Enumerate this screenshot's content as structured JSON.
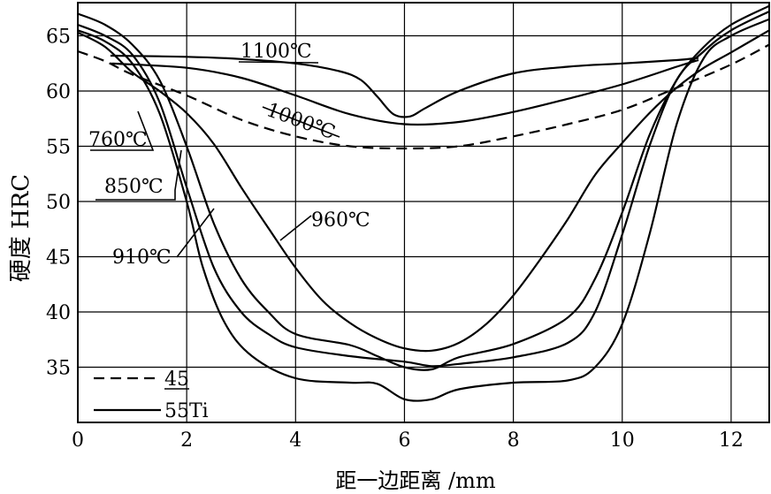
{
  "chart_data": {
    "type": "line",
    "xlabel": "距一边距离 /mm",
    "ylabel": "硬度  HRC",
    "xlim": [
      0,
      12.7
    ],
    "ylim": [
      30,
      68
    ],
    "x_ticks": [
      "0",
      "2",
      "4",
      "6",
      "8",
      "10",
      "12"
    ],
    "y_ticks": [
      "35",
      "40",
      "45",
      "50",
      "55",
      "60",
      "65"
    ],
    "grid": true,
    "legend": {
      "placement": "bottom-left",
      "entries": [
        {
          "label": "45",
          "style": "dashed"
        },
        {
          "label": "55Ti",
          "style": "solid"
        }
      ]
    },
    "series": [
      {
        "name": "1100℃",
        "material": "55Ti",
        "style": "solid",
        "points": [
          [
            0.6,
            63.2
          ],
          [
            2,
            63.1
          ],
          [
            3,
            62.9
          ],
          [
            4,
            62.5
          ],
          [
            4.8,
            61.8
          ],
          [
            5.2,
            61
          ],
          [
            5.5,
            59.5
          ],
          [
            5.8,
            57.9
          ],
          [
            6.1,
            57.7
          ],
          [
            6.4,
            58.5
          ],
          [
            7,
            60
          ],
          [
            8,
            61.6
          ],
          [
            9,
            62.2
          ],
          [
            10,
            62.5
          ],
          [
            11,
            62.8
          ],
          [
            11.4,
            63
          ]
        ]
      },
      {
        "name": "1000℃",
        "material": "55Ti",
        "style": "solid",
        "points": [
          [
            0.6,
            62.5
          ],
          [
            2,
            62.1
          ],
          [
            3,
            61.2
          ],
          [
            4,
            59.6
          ],
          [
            5,
            57.9
          ],
          [
            6,
            57
          ],
          [
            7,
            57.2
          ],
          [
            8,
            58.1
          ],
          [
            9,
            59.3
          ],
          [
            10,
            60.6
          ],
          [
            11,
            62.2
          ],
          [
            11.4,
            62.8
          ]
        ]
      },
      {
        "name": "45",
        "material": "45",
        "style": "dashed",
        "points": [
          [
            0,
            63.6
          ],
          [
            0.5,
            62.7
          ],
          [
            1,
            61.5
          ],
          [
            2,
            59.6
          ],
          [
            3,
            57.4
          ],
          [
            4,
            55.9
          ],
          [
            5,
            55
          ],
          [
            6,
            54.8
          ],
          [
            7,
            55
          ],
          [
            8,
            55.9
          ],
          [
            9,
            57
          ],
          [
            10,
            58.3
          ],
          [
            11,
            60.3
          ],
          [
            12,
            62.4
          ],
          [
            12.7,
            64.2
          ]
        ]
      },
      {
        "name": "760℃",
        "material": "55Ti",
        "style": "solid",
        "points": [
          [
            0,
            65.5
          ],
          [
            0.5,
            64.5
          ],
          [
            1,
            62.5
          ],
          [
            1.5,
            58
          ],
          [
            2,
            50
          ],
          [
            2.3,
            44
          ],
          [
            2.7,
            39
          ],
          [
            3.2,
            36
          ],
          [
            4,
            34
          ],
          [
            5,
            33.6
          ],
          [
            5.5,
            33.5
          ],
          [
            6,
            32.1
          ],
          [
            6.5,
            32.1
          ],
          [
            7,
            33
          ],
          [
            8,
            33.6
          ],
          [
            9,
            33.8
          ],
          [
            9.5,
            35
          ],
          [
            10,
            38.9
          ],
          [
            10.5,
            47
          ],
          [
            11,
            57
          ],
          [
            11.5,
            63
          ],
          [
            12,
            65
          ],
          [
            12.7,
            66.5
          ]
        ]
      },
      {
        "name": "850℃",
        "material": "55Ti",
        "style": "solid",
        "points": [
          [
            0,
            66
          ],
          [
            0.5,
            65
          ],
          [
            1,
            63.3
          ],
          [
            1.5,
            59
          ],
          [
            2,
            51.3
          ],
          [
            2.5,
            44
          ],
          [
            3,
            40
          ],
          [
            3.5,
            38
          ],
          [
            4,
            36.8
          ],
          [
            5,
            36
          ],
          [
            6,
            35.5
          ],
          [
            6.5,
            35.1
          ],
          [
            7,
            35.3
          ],
          [
            8,
            35.9
          ],
          [
            9,
            37.2
          ],
          [
            9.5,
            40
          ],
          [
            10,
            47
          ],
          [
            10.5,
            55
          ],
          [
            11,
            61
          ],
          [
            11.5,
            63.6
          ],
          [
            12,
            65.5
          ],
          [
            12.7,
            67.2
          ]
        ]
      },
      {
        "name": "910℃",
        "material": "55Ti",
        "style": "solid",
        "points": [
          [
            0,
            67
          ],
          [
            0.5,
            66
          ],
          [
            1,
            64.2
          ],
          [
            1.5,
            61
          ],
          [
            2,
            55
          ],
          [
            2.5,
            48
          ],
          [
            3,
            43
          ],
          [
            3.5,
            40
          ],
          [
            4,
            38
          ],
          [
            5,
            37
          ],
          [
            5.5,
            36
          ],
          [
            6,
            35
          ],
          [
            6.5,
            34.8
          ],
          [
            7,
            35.9
          ],
          [
            8,
            37.1
          ],
          [
            9,
            39.5
          ],
          [
            9.5,
            43
          ],
          [
            10,
            49
          ],
          [
            10.5,
            56
          ],
          [
            11,
            61
          ],
          [
            11.5,
            64
          ],
          [
            12,
            66
          ],
          [
            12.7,
            67.7
          ]
        ]
      },
      {
        "name": "960℃",
        "material": "55Ti",
        "style": "solid",
        "points": [
          [
            0,
            65.3
          ],
          [
            0.5,
            64
          ],
          [
            1,
            61.7
          ],
          [
            1.5,
            60
          ],
          [
            2,
            58
          ],
          [
            2.5,
            55.2
          ],
          [
            3,
            51.3
          ],
          [
            3.5,
            47.6
          ],
          [
            4,
            44
          ],
          [
            4.5,
            41
          ],
          [
            5,
            39
          ],
          [
            5.5,
            37.6
          ],
          [
            6,
            36.7
          ],
          [
            6.5,
            36.5
          ],
          [
            7,
            37.2
          ],
          [
            7.5,
            38.9
          ],
          [
            8,
            41.5
          ],
          [
            8.5,
            44.8
          ],
          [
            9,
            48.4
          ],
          [
            9.5,
            52.4
          ],
          [
            10,
            55.3
          ],
          [
            10.5,
            58
          ],
          [
            11,
            60.3
          ],
          [
            11.5,
            62.1
          ],
          [
            12,
            63.5
          ],
          [
            12.7,
            65.5
          ]
        ]
      }
    ],
    "annotations": [
      {
        "text": "1100℃",
        "target": "1100℃"
      },
      {
        "text": "1000℃",
        "target": "1000℃"
      },
      {
        "text": "760℃",
        "target": "760℃"
      },
      {
        "text": "850℃",
        "target": "850℃"
      },
      {
        "text": "910℃",
        "target": "910℃"
      },
      {
        "text": "960℃",
        "target": "960℃"
      }
    ]
  }
}
